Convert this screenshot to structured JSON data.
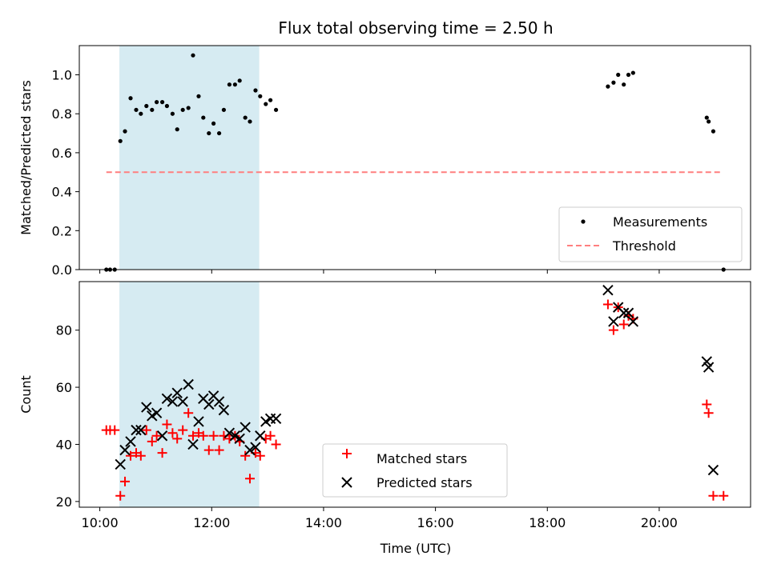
{
  "chart_data": [
    {
      "type": "scatter",
      "title": "Flux total observing time = 2.50 h",
      "xlabel": "",
      "ylabel": "Matched/Predicted stars",
      "xlim": [
        "09:38",
        "21:38"
      ],
      "ylim": [
        0,
        1.15
      ],
      "yticks": [
        0.0,
        0.2,
        0.4,
        0.6,
        0.8,
        1.0
      ],
      "xticks": [
        "10:00",
        "12:00",
        "14:00",
        "16:00",
        "18:00",
        "20:00"
      ],
      "highlight_span": [
        "10:21",
        "12:51"
      ],
      "highlight_color": "#add8e6",
      "threshold": {
        "name": "Threshold",
        "value": 0.5,
        "x_range": [
          "10:07",
          "21:07"
        ],
        "color": "#ff7f7f",
        "style": "dashed"
      },
      "legend": {
        "placement": "lower-right",
        "entries": [
          "Measurements",
          "Threshold"
        ]
      },
      "series": [
        {
          "name": "Measurements",
          "color": "#000000",
          "marker": "dot",
          "points": [
            [
              "10:07",
              0.0
            ],
            [
              "10:11",
              0.0
            ],
            [
              "10:16",
              0.0
            ],
            [
              "10:22",
              0.66
            ],
            [
              "10:27",
              0.71
            ],
            [
              "10:33",
              0.88
            ],
            [
              "10:39",
              0.82
            ],
            [
              "10:44",
              0.8
            ],
            [
              "10:50",
              0.84
            ],
            [
              "10:56",
              0.82
            ],
            [
              "11:01",
              0.86
            ],
            [
              "11:07",
              0.86
            ],
            [
              "11:12",
              0.84
            ],
            [
              "11:18",
              0.8
            ],
            [
              "11:23",
              0.72
            ],
            [
              "11:29",
              0.82
            ],
            [
              "11:35",
              0.83
            ],
            [
              "11:40",
              1.1
            ],
            [
              "11:46",
              0.89
            ],
            [
              "11:51",
              0.78
            ],
            [
              "11:57",
              0.7
            ],
            [
              "12:02",
              0.75
            ],
            [
              "12:08",
              0.7
            ],
            [
              "12:13",
              0.82
            ],
            [
              "12:19",
              0.95
            ],
            [
              "12:25",
              0.95
            ],
            [
              "12:30",
              0.97
            ],
            [
              "12:36",
              0.78
            ],
            [
              "12:41",
              0.76
            ],
            [
              "12:47",
              0.92
            ],
            [
              "12:52",
              0.89
            ],
            [
              "12:58",
              0.85
            ],
            [
              "13:03",
              0.87
            ],
            [
              "13:09",
              0.82
            ],
            [
              "19:05",
              0.94
            ],
            [
              "19:11",
              0.96
            ],
            [
              "19:16",
              1.0
            ],
            [
              "19:22",
              0.95
            ],
            [
              "19:27",
              1.0
            ],
            [
              "19:32",
              1.01
            ],
            [
              "20:51",
              0.78
            ],
            [
              "20:53",
              0.76
            ],
            [
              "20:58",
              0.71
            ],
            [
              "21:09",
              0.0
            ]
          ]
        }
      ]
    },
    {
      "type": "scatter",
      "title": "",
      "xlabel": "Time (UTC)",
      "ylabel": "Count",
      "xlim": [
        "09:38",
        "21:38"
      ],
      "ylim": [
        18,
        97
      ],
      "yticks": [
        20,
        40,
        60,
        80
      ],
      "xticks": [
        "10:00",
        "12:00",
        "14:00",
        "16:00",
        "18:00",
        "20:00"
      ],
      "highlight_span": [
        "10:21",
        "12:51"
      ],
      "highlight_color": "#add8e6",
      "legend": {
        "placement": "lower-center",
        "entries": [
          "Matched stars",
          "Predicted stars"
        ]
      },
      "series": [
        {
          "name": "Matched stars",
          "color": "#ff0000",
          "marker": "plus",
          "points": [
            [
              "10:07",
              45
            ],
            [
              "10:11",
              45
            ],
            [
              "10:16",
              45
            ],
            [
              "10:22",
              22
            ],
            [
              "10:27",
              27
            ],
            [
              "10:33",
              36
            ],
            [
              "10:39",
              37
            ],
            [
              "10:44",
              36
            ],
            [
              "10:50",
              45
            ],
            [
              "10:56",
              41
            ],
            [
              "11:01",
              43
            ],
            [
              "11:07",
              37
            ],
            [
              "11:12",
              47
            ],
            [
              "11:18",
              44
            ],
            [
              "11:23",
              42
            ],
            [
              "11:29",
              45
            ],
            [
              "11:35",
              51
            ],
            [
              "11:40",
              43
            ],
            [
              "11:46",
              44
            ],
            [
              "11:51",
              43
            ],
            [
              "11:57",
              38
            ],
            [
              "12:02",
              43
            ],
            [
              "12:08",
              38
            ],
            [
              "12:13",
              43
            ],
            [
              "12:19",
              42
            ],
            [
              "12:25",
              43
            ],
            [
              "12:30",
              41
            ],
            [
              "12:36",
              36
            ],
            [
              "12:41",
              28
            ],
            [
              "12:47",
              37
            ],
            [
              "12:52",
              36
            ],
            [
              "12:58",
              42
            ],
            [
              "13:03",
              43
            ],
            [
              "13:09",
              40
            ],
            [
              "19:05",
              89
            ],
            [
              "19:11",
              80
            ],
            [
              "19:16",
              88
            ],
            [
              "19:22",
              82
            ],
            [
              "19:27",
              85
            ],
            [
              "19:32",
              84
            ],
            [
              "20:51",
              54
            ],
            [
              "20:53",
              51
            ],
            [
              "20:58",
              22
            ],
            [
              "21:09",
              22
            ]
          ]
        },
        {
          "name": "Predicted stars",
          "color": "#000000",
          "marker": "x",
          "points": [
            [
              "10:22",
              33
            ],
            [
              "10:27",
              38
            ],
            [
              "10:33",
              41
            ],
            [
              "10:39",
              45
            ],
            [
              "10:44",
              45
            ],
            [
              "10:50",
              53
            ],
            [
              "10:56",
              50
            ],
            [
              "11:01",
              51
            ],
            [
              "11:07",
              43
            ],
            [
              "11:12",
              56
            ],
            [
              "11:18",
              55
            ],
            [
              "11:23",
              58
            ],
            [
              "11:29",
              55
            ],
            [
              "11:35",
              61
            ],
            [
              "11:40",
              40
            ],
            [
              "11:46",
              48
            ],
            [
              "11:51",
              56
            ],
            [
              "11:57",
              54
            ],
            [
              "12:02",
              57
            ],
            [
              "12:08",
              55
            ],
            [
              "12:13",
              52
            ],
            [
              "12:19",
              44
            ],
            [
              "12:25",
              43
            ],
            [
              "12:30",
              42
            ],
            [
              "12:36",
              46
            ],
            [
              "12:41",
              38
            ],
            [
              "12:47",
              39
            ],
            [
              "12:52",
              43
            ],
            [
              "12:58",
              48
            ],
            [
              "13:03",
              49
            ],
            [
              "13:09",
              49
            ],
            [
              "19:05",
              94
            ],
            [
              "19:11",
              83
            ],
            [
              "19:16",
              88
            ],
            [
              "19:22",
              86
            ],
            [
              "19:27",
              86
            ],
            [
              "19:32",
              83
            ],
            [
              "20:51",
              69
            ],
            [
              "20:53",
              67
            ],
            [
              "20:58",
              31
            ]
          ]
        }
      ]
    }
  ]
}
